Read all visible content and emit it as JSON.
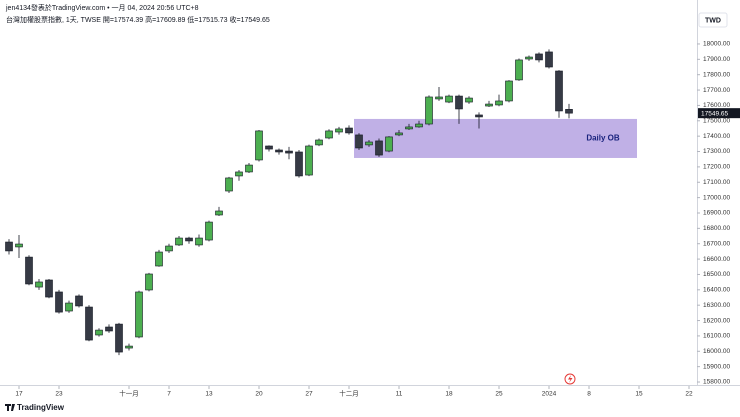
{
  "chart_data": {
    "type": "candlestick",
    "title": "jen4134發表於TradingView.com • 一月 04, 2024 20:56 UTC+8",
    "subtitle": "台灣加權股票指數, 1天, TWSE 開=17574.39 高=17609.89 低=17515.73 收=17549.65",
    "currency": "TWD",
    "brand": "TradingView",
    "last_price": 17549.65,
    "up_color": "#4caf50",
    "down_color": "#363a45",
    "series": [
      {
        "open": [
          16711,
          16679,
          16613,
          16418,
          16464,
          16386,
          16262,
          16360,
          16288,
          16106,
          16158,
          16177,
          16021,
          16093,
          16399,
          16555,
          16653,
          16692,
          16737,
          16692,
          16724,
          16887,
          17043,
          17141,
          17167,
          17245,
          17336,
          17310,
          17303,
          17297,
          17147,
          17343,
          17388,
          17427,
          17453,
          17408,
          17343,
          17369,
          17303,
          17408,
          17447,
          17460,
          17479,
          17642,
          17622,
          17661,
          17622,
          17538,
          17596,
          17603,
          17629,
          17766,
          17902,
          17935,
          17948,
          17824,
          17574.39
        ],
        "high": [
          16730,
          16757,
          16625,
          16470,
          16470,
          16400,
          16330,
          16370,
          16300,
          16150,
          16175,
          16185,
          16050,
          16395,
          16510,
          16660,
          16700,
          16750,
          16745,
          16760,
          16850,
          16940,
          17135,
          17180,
          17225,
          17440,
          17340,
          17320,
          17330,
          17310,
          17345,
          17385,
          17445,
          17460,
          17470,
          17420,
          17375,
          17385,
          17400,
          17440,
          17480,
          17500,
          17665,
          17720,
          17670,
          17670,
          17660,
          17555,
          17630,
          17670,
          17765,
          17905,
          17925,
          17945,
          17965,
          17830,
          17609.89
        ],
        "low": [
          16630,
          16607,
          16430,
          16400,
          16345,
          16245,
          16250,
          16285,
          16065,
          16095,
          16120,
          15975,
          16005,
          16085,
          16390,
          16550,
          16640,
          16685,
          16700,
          16680,
          16715,
          16880,
          17030,
          17110,
          17160,
          17235,
          17300,
          17280,
          17250,
          17130,
          17140,
          17335,
          17380,
          17410,
          17410,
          17310,
          17330,
          17265,
          17295,
          17400,
          17440,
          17455,
          17470,
          17630,
          17615,
          17480,
          17610,
          17450,
          17590,
          17595,
          17620,
          17760,
          17890,
          17880,
          17840,
          17520,
          17515.73
        ],
        "close": [
          16653,
          16698,
          16438,
          16451,
          16353,
          16255,
          16314,
          16295,
          16073,
          16138,
          16132,
          15995,
          16034,
          16386,
          16503,
          16646,
          16685,
          16737,
          16718,
          16737,
          16841,
          16913,
          17128,
          17167,
          17212,
          17434,
          17316,
          17297,
          17290,
          17141,
          17336,
          17375,
          17434,
          17447,
          17421,
          17323,
          17362,
          17277,
          17395,
          17421,
          17460,
          17479,
          17655,
          17655,
          17661,
          17577,
          17648,
          17525,
          17609,
          17629,
          17759,
          17896,
          17915,
          17896,
          17850,
          17564,
          17549.65
        ]
      }
    ],
    "xlim": [
      -0.9,
      68.8
    ],
    "xticks": [
      {
        "value": 1,
        "label": "17"
      },
      {
        "value": 5,
        "label": "23"
      },
      {
        "value": 12,
        "label": "十一月"
      },
      {
        "value": 16,
        "label": "7"
      },
      {
        "value": 20,
        "label": "13"
      },
      {
        "value": 25,
        "label": "20"
      },
      {
        "value": 30,
        "label": "27"
      },
      {
        "value": 34,
        "label": "十二月"
      },
      {
        "value": 39,
        "label": "11"
      },
      {
        "value": 44,
        "label": "18"
      },
      {
        "value": 49,
        "label": "25"
      },
      {
        "value": 54,
        "label": "2024"
      },
      {
        "value": 58,
        "label": "8"
      },
      {
        "value": 63,
        "label": "15"
      },
      {
        "value": 68,
        "label": "22"
      }
    ],
    "ylim": [
      15709,
      18234
    ],
    "yticks": [
      {
        "value": 15800,
        "label": "15800.00"
      },
      {
        "value": 15900,
        "label": "15900.00"
      },
      {
        "value": 16000,
        "label": "16000.00"
      },
      {
        "value": 16100,
        "label": "16100.00"
      },
      {
        "value": 16200,
        "label": "16200.00"
      },
      {
        "value": 16300,
        "label": "16300.00"
      },
      {
        "value": 16400,
        "label": "16400.00"
      },
      {
        "value": 16500,
        "label": "16500.00"
      },
      {
        "value": 16600,
        "label": "16600.00"
      },
      {
        "value": 16700,
        "label": "16700.00"
      },
      {
        "value": 16800,
        "label": "16800.00"
      },
      {
        "value": 16900,
        "label": "16900.00"
      },
      {
        "value": 17000,
        "label": "17000.00"
      },
      {
        "value": 17100,
        "label": "17100.00"
      },
      {
        "value": 17200,
        "label": "17200.00"
      },
      {
        "value": 17300,
        "label": "17300.00"
      },
      {
        "value": 17400,
        "label": "17400.00"
      },
      {
        "value": 17500,
        "label": "17500.00"
      },
      {
        "value": 17600,
        "label": "17600.00"
      },
      {
        "value": 17700,
        "label": "17700.00"
      },
      {
        "value": 17800,
        "label": "17800.00"
      },
      {
        "value": 17900,
        "label": "17900.00"
      },
      {
        "value": 18000,
        "label": "18000.00"
      }
    ],
    "grid": false,
    "annotations": [
      {
        "text": "Daily OB",
        "x0": 34.5,
        "x1": 62.8,
        "y0": 17258,
        "y1": 17512,
        "color": "#b9a7e3"
      }
    ]
  }
}
